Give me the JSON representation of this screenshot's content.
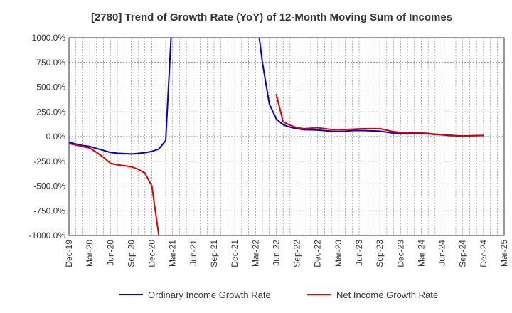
{
  "chart_data": {
    "type": "line",
    "title": "[2780]  Trend of Growth Rate (YoY) of 12-Month Moving Sum of Incomes",
    "xlabel": "",
    "ylabel": "",
    "ylim": [
      -1000,
      1000
    ],
    "y_ticks": [
      "1000.0%",
      "750.0%",
      "500.0%",
      "250.0%",
      "0.0%",
      "-250.0%",
      "-500.0%",
      "-750.0%",
      "-1000.0%"
    ],
    "y_tick_values": [
      1000,
      750,
      500,
      250,
      0,
      -250,
      -500,
      -750,
      -1000
    ],
    "x_ticks": [
      "Dec-19",
      "Mar-20",
      "Jun-20",
      "Sep-20",
      "Dec-20",
      "Mar-21",
      "Jun-21",
      "Sep-21",
      "Dec-21",
      "Mar-22",
      "Jun-22",
      "Sep-22",
      "Dec-22",
      "Mar-23",
      "Jun-23",
      "Sep-23",
      "Dec-23",
      "Mar-24",
      "Jun-24",
      "Sep-24",
      "Dec-24",
      "Mar-25"
    ],
    "grid": true,
    "legend_position": "bottom",
    "series": [
      {
        "name": "Ordinary Income Growth Rate",
        "color": "#0000cc",
        "points": [
          [
            "Dec-19",
            -55
          ],
          [
            "Jan-20",
            -75
          ],
          [
            "Feb-20",
            -90
          ],
          [
            "Mar-20",
            -100
          ],
          [
            "Apr-20",
            -120
          ],
          [
            "May-20",
            -140
          ],
          [
            "Jun-20",
            -160
          ],
          [
            "Jul-20",
            -168
          ],
          [
            "Aug-20",
            -172
          ],
          [
            "Sep-20",
            -175
          ],
          [
            "Oct-20",
            -170
          ],
          [
            "Nov-20",
            -162
          ],
          [
            "Dec-20",
            -150
          ],
          [
            "Jan-21",
            -125
          ],
          [
            "Feb-21",
            -40
          ],
          [
            "Mar-21",
            1300
          ],
          [
            "Mar-22",
            1300
          ],
          [
            "Apr-22",
            750
          ],
          [
            "May-22",
            330
          ],
          [
            "Jun-22",
            180
          ],
          [
            "Jul-22",
            120
          ],
          [
            "Aug-22",
            95
          ],
          [
            "Sep-22",
            80
          ],
          [
            "Oct-22",
            70
          ],
          [
            "Nov-22",
            68
          ],
          [
            "Dec-22",
            66
          ],
          [
            "Jan-23",
            60
          ],
          [
            "Feb-23",
            55
          ],
          [
            "Mar-23",
            50
          ],
          [
            "Apr-23",
            55
          ],
          [
            "May-23",
            60
          ],
          [
            "Jun-23",
            62
          ],
          [
            "Jul-23",
            60
          ],
          [
            "Aug-23",
            58
          ],
          [
            "Sep-23",
            55
          ],
          [
            "Oct-23",
            45
          ],
          [
            "Nov-23",
            35
          ],
          [
            "Dec-23",
            30
          ],
          [
            "Jan-24",
            30
          ],
          [
            "Feb-24",
            32
          ],
          [
            "Mar-24",
            33
          ],
          [
            "Apr-24",
            28
          ],
          [
            "May-24",
            22
          ],
          [
            "Jun-24",
            18
          ],
          [
            "Jul-24",
            12
          ],
          [
            "Aug-24",
            8
          ],
          [
            "Sep-24",
            5
          ],
          [
            "Oct-24",
            8
          ],
          [
            "Nov-24",
            10
          ],
          [
            "Dec-24",
            12
          ]
        ]
      },
      {
        "name": "Net Income Growth Rate",
        "color": "#dd0000",
        "points": [
          [
            "Dec-19",
            -70
          ],
          [
            "Jan-20",
            -85
          ],
          [
            "Feb-20",
            -100
          ],
          [
            "Mar-20",
            -115
          ],
          [
            "Apr-20",
            -160
          ],
          [
            "May-20",
            -210
          ],
          [
            "Jun-20",
            -270
          ],
          [
            "Jul-20",
            -285
          ],
          [
            "Aug-20",
            -295
          ],
          [
            "Sep-20",
            -305
          ],
          [
            "Oct-20",
            -330
          ],
          [
            "Nov-20",
            -370
          ],
          [
            "Dec-20",
            -500
          ],
          [
            "Jan-21",
            -1000
          ],
          null,
          [
            "Jun-22",
            430
          ],
          [
            "Jul-22",
            150
          ],
          [
            "Aug-22",
            115
          ],
          [
            "Sep-22",
            90
          ],
          [
            "Oct-22",
            80
          ],
          [
            "Nov-22",
            85
          ],
          [
            "Dec-22",
            90
          ],
          [
            "Jan-23",
            80
          ],
          [
            "Feb-23",
            72
          ],
          [
            "Mar-23",
            68
          ],
          [
            "Apr-23",
            72
          ],
          [
            "May-23",
            75
          ],
          [
            "Jun-23",
            78
          ],
          [
            "Jul-23",
            80
          ],
          [
            "Aug-23",
            80
          ],
          [
            "Sep-23",
            80
          ],
          [
            "Oct-23",
            65
          ],
          [
            "Nov-23",
            50
          ],
          [
            "Dec-23",
            42
          ],
          [
            "Jan-24",
            40
          ],
          [
            "Feb-24",
            40
          ],
          [
            "Mar-24",
            38
          ],
          [
            "Apr-24",
            32
          ],
          [
            "May-24",
            25
          ],
          [
            "Jun-24",
            20
          ],
          [
            "Jul-24",
            15
          ],
          [
            "Aug-24",
            10
          ],
          [
            "Sep-24",
            6
          ],
          [
            "Oct-24",
            8
          ],
          [
            "Nov-24",
            10
          ],
          [
            "Dec-24",
            12
          ]
        ]
      }
    ]
  }
}
